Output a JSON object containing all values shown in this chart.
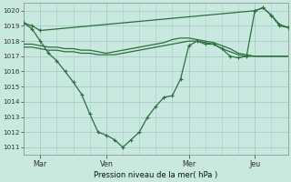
{
  "bg_color": "#c8e8e0",
  "grid_color": "#a8ccc4",
  "line_color": "#2d6e3e",
  "plot_bg": "#c8e8e0",
  "xlim": [
    0,
    96
  ],
  "ylim": [
    1010.5,
    1020.5
  ],
  "yticks": [
    1011,
    1012,
    1013,
    1014,
    1015,
    1016,
    1017,
    1018,
    1019,
    1020
  ],
  "ytick_labels": [
    "1011",
    "1012",
    "1013",
    "1014",
    "1015",
    "1016",
    "1017",
    "1018",
    "1019",
    "1020"
  ],
  "xtick_positions": [
    6,
    30,
    60,
    84
  ],
  "xtick_labels": [
    "Mar",
    "Ven",
    "Mer",
    "Jeu"
  ],
  "vline_positions": [
    6,
    30,
    60,
    84
  ],
  "xlabel": "Pression niveau de la mer( hPa )",
  "line_main": {
    "x": [
      0,
      3,
      6,
      9,
      12,
      15,
      18,
      21,
      24,
      27,
      30,
      33,
      36,
      39,
      42,
      45,
      48,
      51,
      54,
      57,
      60,
      63,
      66,
      69,
      72,
      75,
      78,
      81,
      84,
      87,
      90,
      93,
      96
    ],
    "y": [
      1019.2,
      1018.8,
      1018.0,
      1017.2,
      1016.7,
      1016.0,
      1015.3,
      1014.5,
      1013.2,
      1012.0,
      1011.8,
      1011.5,
      1011.0,
      1011.5,
      1012.0,
      1013.0,
      1013.7,
      1014.3,
      1014.4,
      1015.5,
      1017.7,
      1018.0,
      1017.8,
      1017.8,
      1017.5,
      1017.0,
      1016.9,
      1017.0,
      1020.0,
      1020.2,
      1019.7,
      1019.0,
      1018.9
    ]
  },
  "line_flat1": {
    "x": [
      0,
      3,
      6,
      9,
      12,
      15,
      18,
      21,
      24,
      27,
      30,
      33,
      36,
      39,
      42,
      45,
      48,
      51,
      54,
      57,
      60,
      63,
      66,
      69,
      72,
      75,
      78,
      81,
      84,
      87,
      90,
      93,
      96
    ],
    "y": [
      1017.6,
      1017.6,
      1017.5,
      1017.4,
      1017.4,
      1017.3,
      1017.3,
      1017.2,
      1017.2,
      1017.1,
      1017.1,
      1017.1,
      1017.2,
      1017.3,
      1017.4,
      1017.5,
      1017.6,
      1017.7,
      1017.8,
      1017.9,
      1018.0,
      1018.0,
      1017.9,
      1017.8,
      1017.5,
      1017.3,
      1017.1,
      1017.0,
      1017.0,
      1017.0,
      1017.0,
      1017.0,
      1017.0
    ]
  },
  "line_flat2": {
    "x": [
      0,
      3,
      6,
      9,
      12,
      15,
      18,
      21,
      24,
      27,
      30,
      33,
      36,
      39,
      42,
      45,
      48,
      51,
      54,
      57,
      60,
      63,
      66,
      69,
      72,
      75,
      78,
      81,
      84,
      87,
      90,
      93,
      96
    ],
    "y": [
      1017.8,
      1017.8,
      1017.7,
      1017.6,
      1017.6,
      1017.5,
      1017.5,
      1017.4,
      1017.4,
      1017.3,
      1017.2,
      1017.3,
      1017.4,
      1017.5,
      1017.6,
      1017.7,
      1017.8,
      1017.9,
      1018.1,
      1018.2,
      1018.2,
      1018.1,
      1018.0,
      1017.9,
      1017.7,
      1017.5,
      1017.2,
      1017.1,
      1017.0,
      1017.0,
      1017.0,
      1017.0,
      1017.0
    ]
  },
  "line_upper": {
    "x": [
      0,
      3,
      6,
      84,
      87,
      90,
      93,
      96
    ],
    "y": [
      1019.2,
      1019.0,
      1018.7,
      1020.0,
      1020.2,
      1019.7,
      1019.1,
      1018.9
    ]
  }
}
